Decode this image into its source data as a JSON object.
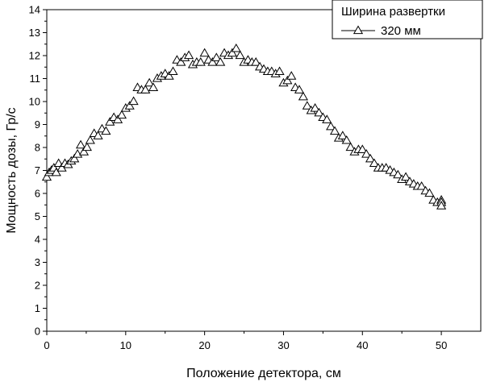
{
  "chart_data": {
    "type": "scatter",
    "title": "",
    "xlabel": "Положение детектора, см",
    "ylabel": "Мощность дозы, Гр/с",
    "xlim": [
      0,
      55
    ],
    "ylim": [
      0,
      14
    ],
    "xticks": [
      0,
      10,
      20,
      30,
      40,
      50
    ],
    "yticks": [
      0,
      1,
      2,
      3,
      4,
      5,
      6,
      7,
      8,
      9,
      10,
      11,
      12,
      13,
      14
    ],
    "grid": false,
    "legend": {
      "title": "Ширина развертки",
      "placement": "top-right"
    },
    "series": [
      {
        "name": "320 мм",
        "marker": "open-triangle",
        "line": "none",
        "color": "#000000",
        "x": [
          0,
          0.3,
          0.6,
          0.9,
          1.2,
          1.5,
          1.9,
          2.3,
          2.7,
          3.1,
          3.5,
          3.9,
          4.3,
          4.7,
          5.1,
          5.5,
          6.0,
          6.5,
          7.0,
          7.5,
          8.0,
          8.5,
          9.0,
          9.5,
          10.0,
          10.5,
          11.0,
          11.5,
          12.0,
          12.5,
          13.0,
          13.5,
          14.0,
          14.5,
          15.0,
          15.5,
          16.0,
          16.5,
          17.0,
          17.5,
          18.0,
          18.5,
          19.0,
          19.5,
          20.0,
          20.5,
          21.0,
          21.5,
          22.0,
          22.5,
          23.0,
          23.5,
          24.0,
          24.5,
          25.0,
          25.5,
          26.0,
          26.5,
          27.0,
          27.5,
          28.0,
          28.5,
          29.0,
          29.5,
          30.0,
          30.5,
          31.0,
          31.5,
          32.0,
          32.5,
          33.0,
          33.5,
          34.0,
          34.5,
          35.0,
          35.5,
          36.0,
          36.5,
          37.0,
          37.5,
          38.0,
          38.5,
          39.0,
          39.5,
          40.0,
          40.5,
          41.0,
          41.5,
          42.0,
          42.5,
          43.0,
          43.5,
          44.0,
          44.5,
          45.0,
          45.5,
          46.0,
          46.5,
          47.0,
          47.5,
          48.0,
          48.5,
          49.0,
          49.5,
          50.0,
          50.0,
          50.0
        ],
        "y": [
          6.7,
          6.9,
          7.0,
          7.1,
          6.9,
          7.3,
          7.1,
          7.3,
          7.25,
          7.4,
          7.5,
          7.7,
          8.1,
          7.8,
          8.0,
          8.3,
          8.6,
          8.5,
          8.8,
          8.7,
          9.1,
          9.3,
          9.2,
          9.4,
          9.7,
          9.8,
          10.0,
          10.6,
          10.5,
          10.5,
          10.8,
          10.6,
          11.0,
          11.1,
          11.2,
          11.1,
          11.3,
          11.8,
          11.7,
          11.9,
          12.0,
          11.6,
          11.7,
          11.7,
          12.1,
          11.8,
          11.7,
          11.9,
          11.7,
          12.1,
          12.0,
          12.1,
          12.3,
          12.0,
          11.7,
          11.8,
          11.7,
          11.7,
          11.5,
          11.4,
          11.3,
          11.3,
          11.2,
          11.3,
          10.8,
          10.9,
          11.1,
          10.6,
          10.5,
          10.2,
          9.8,
          9.6,
          9.7,
          9.5,
          9.3,
          9.2,
          8.9,
          8.7,
          8.4,
          8.5,
          8.3,
          8.0,
          7.8,
          7.9,
          7.9,
          7.7,
          7.5,
          7.3,
          7.1,
          7.1,
          7.1,
          7.0,
          6.9,
          6.8,
          6.6,
          6.7,
          6.5,
          6.4,
          6.3,
          6.3,
          6.1,
          6.0,
          5.7,
          5.6,
          5.7,
          5.6,
          5.45
        ]
      }
    ]
  }
}
